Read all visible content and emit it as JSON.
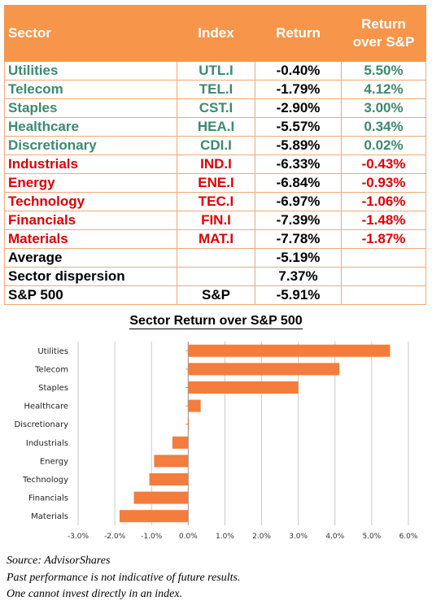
{
  "table": {
    "headers": [
      "Sector",
      "Index",
      "Return",
      "Return over S&P"
    ],
    "rows": [
      {
        "sector": "Utilities",
        "index": "UTL.I",
        "ret": "-0.40%",
        "rel": "5.50%",
        "color": "#3a8a6e"
      },
      {
        "sector": "Telecom",
        "index": "TEL.I",
        "ret": "-1.79%",
        "rel": "4.12%",
        "color": "#3a8a6e"
      },
      {
        "sector": "Staples",
        "index": "CST.I",
        "ret": "-2.90%",
        "rel": "3.00%",
        "color": "#3a8a6e"
      },
      {
        "sector": "Healthcare",
        "index": "HEA.I",
        "ret": "-5.57%",
        "rel": "0.34%",
        "color": "#3a8a6e"
      },
      {
        "sector": "Discretionary",
        "index": "CDI.I",
        "ret": "-5.89%",
        "rel": "0.02%",
        "color": "#3a8a6e"
      },
      {
        "sector": "Industrials",
        "index": "IND.I",
        "ret": "-6.33%",
        "rel": "-0.43%",
        "color": "#e00000"
      },
      {
        "sector": "Energy",
        "index": "ENE.I",
        "ret": "-6.84%",
        "rel": "-0.93%",
        "color": "#e00000"
      },
      {
        "sector": "Technology",
        "index": "TEC.I",
        "ret": "-6.97%",
        "rel": "-1.06%",
        "color": "#e00000"
      },
      {
        "sector": "Financials",
        "index": "FIN.I",
        "ret": "-7.39%",
        "rel": "-1.48%",
        "color": "#e00000"
      },
      {
        "sector": "Materials",
        "index": "MAT.I",
        "ret": "-7.78%",
        "rel": "-1.87%",
        "color": "#e00000"
      },
      {
        "sector": "Average",
        "index": "",
        "ret": "-5.19%",
        "rel": "",
        "color": "#000000"
      },
      {
        "sector": "Sector dispersion",
        "index": "",
        "ret": "7.37%",
        "rel": "",
        "color": "#000000"
      },
      {
        "sector": "S&P 500",
        "index": "S&P",
        "ret": "-5.91%",
        "rel": "",
        "color": "#000000"
      }
    ],
    "header_color": "#f7964a"
  },
  "chart_data": {
    "type": "bar",
    "orientation": "horizontal",
    "title": "Sector Return over S&P 500",
    "categories": [
      "Utilities",
      "Telecom",
      "Staples",
      "Healthcare",
      "Discretionary",
      "Industrials",
      "Energy",
      "Technology",
      "Financials",
      "Materials"
    ],
    "values": [
      5.5,
      4.12,
      3.0,
      0.34,
      0.02,
      -0.43,
      -0.93,
      -1.06,
      -1.48,
      -1.87
    ],
    "xlim": [
      -3.0,
      6.0
    ],
    "xticks": [
      "-3.0%",
      "-2.0%",
      "-1.0%",
      "0.0%",
      "1.0%",
      "2.0%",
      "3.0%",
      "4.0%",
      "5.0%",
      "6.0%"
    ],
    "grid": true,
    "bar_color": "#f47c3c"
  },
  "footer": {
    "source": "Source: AdvisorShares",
    "disclaimer1": "Past performance is not indicative of future results.",
    "disclaimer2": "One cannot invest directly in an index."
  }
}
